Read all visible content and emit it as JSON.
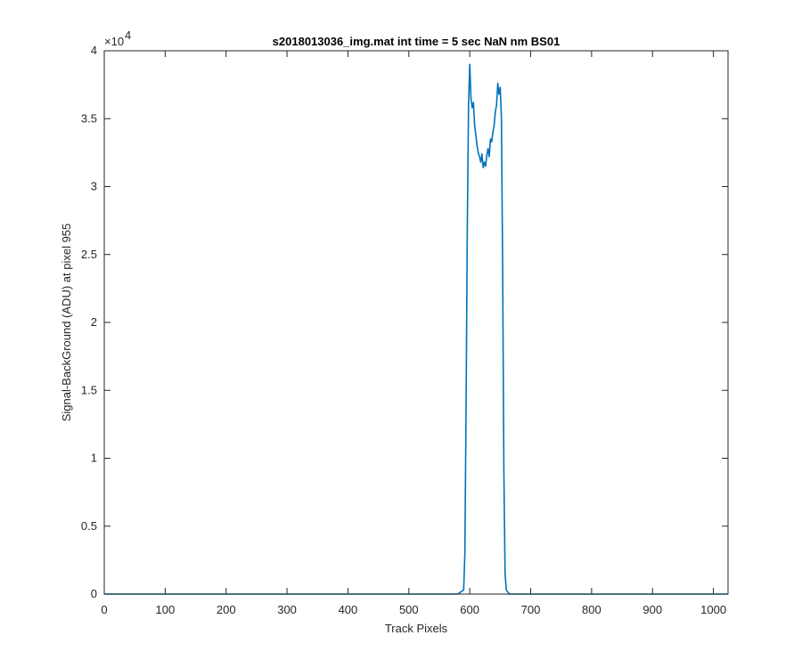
{
  "chart_data": {
    "type": "line",
    "title": "s2018013036_img.mat int time = 5 sec  NaN nm BS01",
    "xlabel": "Track Pixels",
    "ylabel": "Signal-BackGround (ADU) at pixel 955",
    "xlim": [
      0,
      1024
    ],
    "ylim": [
      0,
      40000
    ],
    "xticks": [
      0,
      100,
      200,
      300,
      400,
      500,
      600,
      700,
      800,
      900,
      1000
    ],
    "yticks": [
      0,
      5000,
      10000,
      15000,
      20000,
      25000,
      30000,
      35000,
      40000
    ],
    "ytick_labels": [
      "0",
      "0.5",
      "1",
      "1.5",
      "2",
      "2.5",
      "3",
      "3.5",
      "4"
    ],
    "y_exponent_base": "×10",
    "y_exponent_power": "4",
    "grid": false,
    "series": [
      {
        "color": "#0072BD",
        "x": [
          0,
          100,
          200,
          300,
          400,
          500,
          580,
          590,
          592,
          594,
          596,
          598,
          600,
          602,
          604,
          606,
          608,
          610,
          612,
          614,
          616,
          618,
          620,
          622,
          624,
          626,
          628,
          630,
          632,
          634,
          636,
          638,
          640,
          642,
          644,
          646,
          648,
          650,
          652,
          654,
          656,
          658,
          660,
          665,
          700,
          800,
          900,
          1024
        ],
        "y": [
          0,
          0,
          0,
          0,
          0,
          0,
          0,
          300,
          3000,
          14000,
          27000,
          36000,
          39000,
          36500,
          35800,
          36200,
          34500,
          33800,
          33000,
          32500,
          32200,
          31800,
          32400,
          31400,
          31800,
          31500,
          32300,
          32800,
          32200,
          33500,
          33300,
          34000,
          34500,
          35500,
          36000,
          37600,
          36800,
          37300,
          35000,
          24000,
          9000,
          1500,
          300,
          0,
          0,
          0,
          0,
          0
        ]
      }
    ]
  }
}
